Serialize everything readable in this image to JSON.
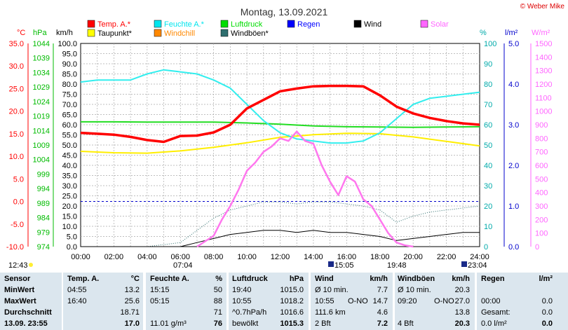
{
  "chart_data": {
    "type": "line",
    "title": "Montag, 13.09.2021",
    "copyright": "© Weber Mike",
    "x_ticks": [
      "00:00",
      "02:00",
      "04:00",
      "06:00",
      "08:00",
      "10:00",
      "12:00",
      "14:00",
      "16:00",
      "18:00",
      "20:00",
      "22:00",
      "24:00"
    ],
    "x_range_hours": [
      0,
      24
    ],
    "axes": {
      "temp_c": {
        "label": "°C",
        "ticks": [
          "35.0",
          "30.0",
          "25.0",
          "20.0",
          "15.0",
          "10.0",
          "5.0",
          "0.0",
          "-5.0",
          "-10.0"
        ],
        "range": [
          -10,
          35
        ],
        "color": "#ff0000"
      },
      "pressure_hpa": {
        "label": "hPa",
        "ticks": [
          "1044",
          "1039",
          "1034",
          "1029",
          "1024",
          "1019",
          "1014",
          "1009",
          "1004",
          "999",
          "994",
          "989",
          "984",
          "979",
          "974"
        ],
        "range": [
          974,
          1044
        ],
        "color": "#00bb00"
      },
      "wind_kmh": {
        "label": "km/h",
        "ticks": [
          "100.0",
          "95.0",
          "90.0",
          "85.0",
          "80.0",
          "75.0",
          "70.0",
          "65.0",
          "60.0",
          "55.0",
          "50.0",
          "45.0",
          "40.0",
          "35.0",
          "30.0",
          "25.0",
          "20.0",
          "15.0",
          "10.0",
          "5.0",
          "0.0"
        ],
        "range": [
          0,
          100
        ],
        "color": "#000000"
      },
      "humidity_pct": {
        "label": "%",
        "ticks": [
          "100",
          "90",
          "80",
          "70",
          "60",
          "50",
          "40",
          "30",
          "20",
          "10",
          "0"
        ],
        "range": [
          0,
          100
        ],
        "color": "#00aaaa"
      },
      "rain_lm2": {
        "label": "l/m²",
        "ticks": [
          "5.0",
          "4.0",
          "3.0",
          "2.0",
          "1.0",
          "0.0"
        ],
        "range": [
          0,
          5
        ],
        "color": "#0000cc"
      },
      "solar_wm2": {
        "label": "W/m²",
        "ticks": [
          "1500",
          "1400",
          "1300",
          "1200",
          "1100",
          "1000",
          "900",
          "800",
          "700",
          "600",
          "500",
          "400",
          "300",
          "200",
          "100",
          "0"
        ],
        "range": [
          0,
          1500
        ],
        "color": "#ff66ff"
      }
    },
    "legend": [
      {
        "name": "Temp. A.*",
        "color": "#ff0000"
      },
      {
        "name": "Feuchte A.*",
        "color": "#00e5ee"
      },
      {
        "name": "Luftdruck",
        "color": "#00dd00"
      },
      {
        "name": "Regen",
        "color": "#0000ff"
      },
      {
        "name": "Wind",
        "color": "#000000"
      },
      {
        "name": "Solar",
        "color": "#ff66ff"
      },
      {
        "name": "Taupunkt*",
        "color": "#ffff00"
      },
      {
        "name": "Windchill",
        "color": "#ff8800"
      },
      {
        "name": "Windböen*",
        "color": "#2f6f6f"
      }
    ],
    "series": [
      {
        "name": "Temp. A.*",
        "axis": "temp_c",
        "x": [
          0,
          1,
          2,
          3,
          4,
          5,
          6,
          7,
          8,
          9,
          10,
          11,
          12,
          13,
          14,
          15,
          16,
          17,
          18,
          19,
          20,
          21,
          22,
          23,
          24
        ],
        "values": [
          15.2,
          15.0,
          14.8,
          14.3,
          13.6,
          13.2,
          14.5,
          14.6,
          15.3,
          17.0,
          20.6,
          22.5,
          24.4,
          25.0,
          25.5,
          25.6,
          25.6,
          25.5,
          23.5,
          21.0,
          19.5,
          18.5,
          17.8,
          17.3,
          17.0
        ]
      },
      {
        "name": "Feuchte A.*",
        "axis": "humidity_pct",
        "x": [
          0,
          1,
          2,
          3,
          4,
          5,
          6,
          7,
          8,
          9,
          10,
          11,
          12,
          13,
          14,
          15,
          16,
          17,
          18,
          19,
          20,
          21,
          22,
          23,
          24
        ],
        "values": [
          81,
          82,
          82,
          82,
          85,
          87,
          86,
          85,
          82,
          78,
          70,
          62,
          56,
          53,
          52,
          51,
          51,
          52,
          56,
          63,
          70,
          73,
          74,
          75,
          76
        ]
      },
      {
        "name": "Luftdruck",
        "axis": "pressure_hpa",
        "x": [
          0,
          2,
          4,
          6,
          8,
          10,
          12,
          14,
          16,
          18,
          20,
          22,
          24
        ],
        "values": [
          1017.0,
          1017.0,
          1016.9,
          1016.9,
          1016.9,
          1016.6,
          1016.2,
          1015.6,
          1015.3,
          1015.2,
          1015.1,
          1015.2,
          1015.3
        ]
      },
      {
        "name": "Taupunkt*",
        "axis": "temp_c",
        "x": [
          0,
          2,
          4,
          6,
          8,
          10,
          12,
          14,
          16,
          18,
          20,
          22,
          24
        ],
        "values": [
          11.1,
          10.8,
          10.7,
          11.2,
          12.0,
          13.0,
          14.2,
          14.8,
          15.1,
          15.0,
          14.3,
          13.3,
          12.3
        ]
      },
      {
        "name": "Windböen*",
        "axis": "wind_kmh",
        "x": [
          0,
          2,
          4,
          6,
          7,
          8,
          9,
          10,
          11,
          12,
          13,
          14,
          15,
          16,
          17,
          18,
          19,
          20,
          21,
          22,
          23,
          24
        ],
        "values": [
          0,
          0,
          0,
          2,
          8,
          14,
          18,
          20,
          22,
          22,
          21,
          22,
          22,
          21,
          20,
          18,
          12,
          15,
          17,
          18,
          19,
          20
        ]
      },
      {
        "name": "Wind",
        "axis": "wind_kmh",
        "x": [
          0,
          2,
          4,
          6,
          7,
          8,
          9,
          10,
          11,
          12,
          13,
          14,
          15,
          16,
          17,
          18,
          19,
          20,
          21,
          22,
          23,
          24
        ],
        "values": [
          0,
          0,
          0,
          0,
          2,
          4,
          6,
          7,
          8,
          8,
          7,
          8,
          7,
          7,
          6,
          5,
          3,
          4,
          5,
          6,
          7,
          7
        ]
      },
      {
        "name": "Solar",
        "axis": "solar_wm2",
        "x": [
          7,
          8,
          8.5,
          9,
          9.5,
          10,
          10.5,
          11,
          11.5,
          12,
          12.5,
          13,
          13.5,
          14,
          14.5,
          15,
          15.5,
          16,
          16.5,
          17,
          17.5,
          18,
          18.5,
          19,
          19.5,
          20
        ],
        "values": [
          0,
          80,
          200,
          300,
          420,
          560,
          620,
          700,
          740,
          800,
          780,
          850,
          780,
          760,
          600,
          480,
          380,
          520,
          480,
          350,
          300,
          200,
          100,
          30,
          10,
          0
        ]
      }
    ]
  },
  "table": {
    "headers": [
      "Sensor",
      "Temp. A.",
      "°C",
      "Feuchte A.",
      "%",
      "Luftdruck",
      "hPa",
      "Wind",
      "km/h",
      "Windböen",
      "km/h",
      "Regen",
      "l/m²"
    ],
    "rows": [
      {
        "label": "MinWert",
        "temp_time": "04:55",
        "temp": "13.2",
        "hum_time": "15:15",
        "hum": "50",
        "press_time": "19:40",
        "press": "1015.0",
        "wind_a": "Ø 10 min.",
        "wind_b": "",
        "wind": "7.7",
        "gust_a": "Ø 10 min.",
        "gust_b": "",
        "gust": "20.3",
        "rain_a": "",
        "rain": ""
      },
      {
        "label": "MaxWert",
        "temp_time": "16:40",
        "temp": "25.6",
        "hum_time": "05:15",
        "hum": "88",
        "press_time": "10:55",
        "press": "1018.2",
        "wind_a": "10:55",
        "wind_b": "O-NO",
        "wind": "14.7",
        "gust_a": "09:20",
        "gust_b": "O-NO",
        "gust": "27.0",
        "rain_a": "00:00",
        "rain": "0.0"
      },
      {
        "label": "Durchschnitt",
        "temp_time": "",
        "temp": "18.71",
        "hum_time": "",
        "hum": "71",
        "press_time": "^0.7hPa/h",
        "press": "1016.6",
        "wind_a": "111.6 km",
        "wind_b": "",
        "wind": "4.6",
        "gust_a": "",
        "gust_b": "",
        "gust": "13.8",
        "rain_a": "Gesamt:",
        "rain": "0.0"
      },
      {
        "label": "13.09.  23:55",
        "temp_time": "",
        "temp": "17.0",
        "hum_time": "11.01 g/m³",
        "hum": "76",
        "press_time": "bewölkt",
        "press": "1015.3",
        "wind_a": "2 Bft",
        "wind_b": "",
        "wind": "7.2",
        "gust_a": "4 Bft",
        "gust_b": "",
        "gust": "20.3",
        "rain_a": "0.0 l/m²",
        "rain": "0.0"
      }
    ]
  },
  "sun": {
    "rise_label": "12:43",
    "sunrise": "07:04",
    "sunset": "19:48",
    "moon1": "15:05",
    "moon2": "23:04"
  }
}
